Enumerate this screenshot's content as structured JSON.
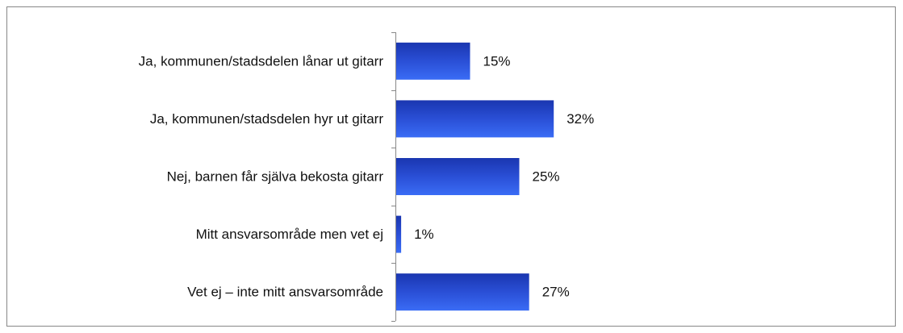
{
  "chart_data": {
    "type": "bar",
    "orientation": "horizontal",
    "categories": [
      "Ja, kommunen/stadsdelen lånar ut gitarr",
      "Ja, kommunen/stadsdelen hyr ut gitarr",
      "Nej, barnen får själva bekosta gitarr",
      "Mitt ansvarsområde men vet ej",
      "Vet ej – inte mitt ansvarsområde"
    ],
    "values": [
      15,
      32,
      25,
      1,
      27
    ],
    "value_labels": [
      "15%",
      "32%",
      "25%",
      "1%",
      "27%"
    ],
    "color": "#2b55e0"
  }
}
